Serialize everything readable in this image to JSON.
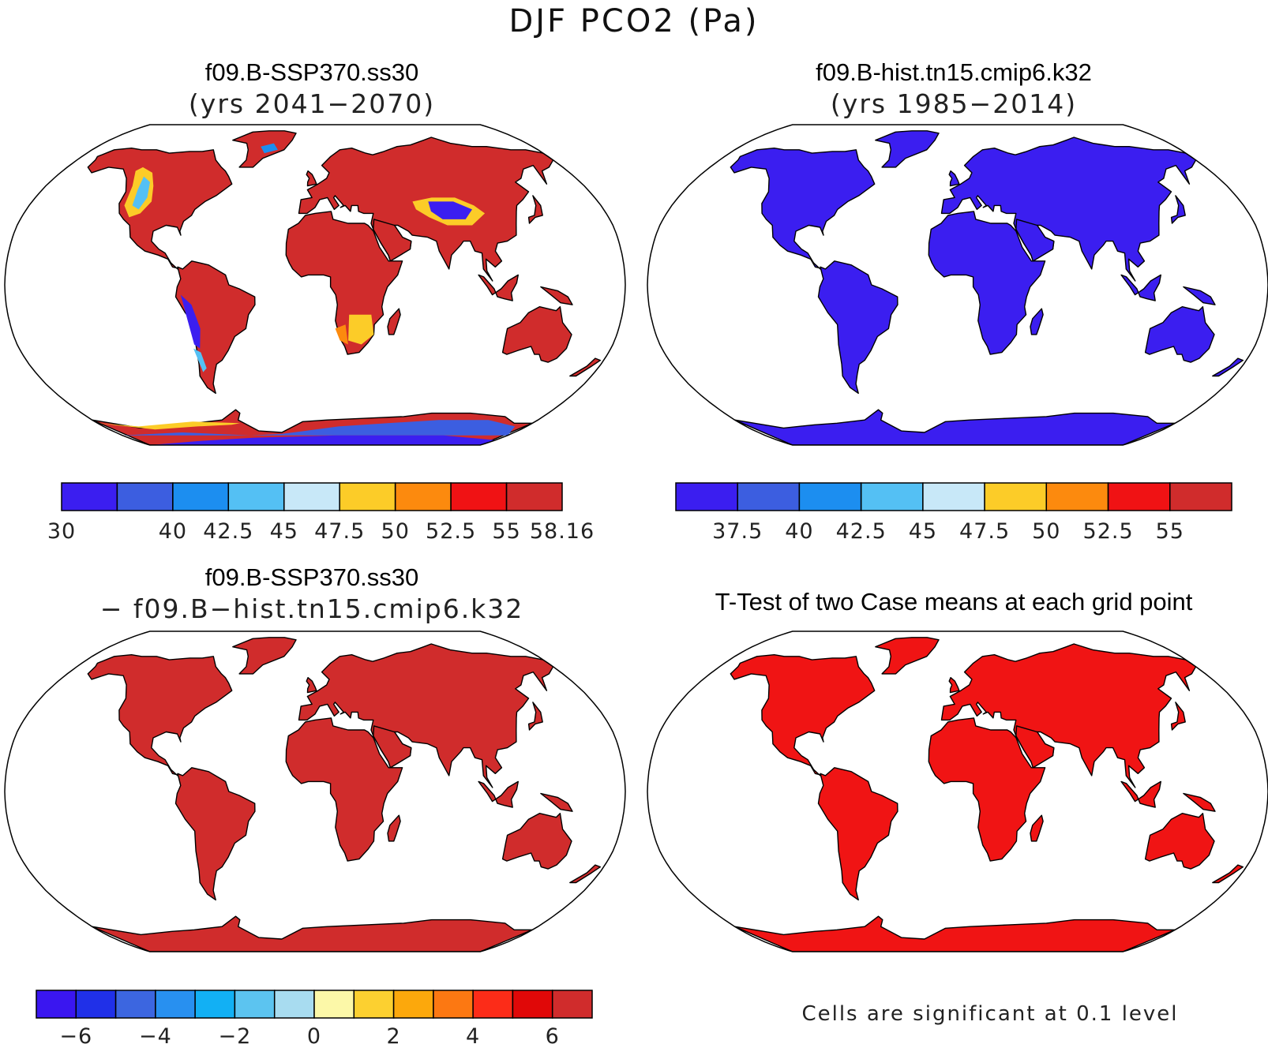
{
  "figure": {
    "title": "DJF PCO2 (Pa)"
  },
  "panels": [
    {
      "id": "top-left",
      "case": "f09.B-SSP370.ss30",
      "subtitle": "(yrs 2041−2070)",
      "field": "case1",
      "colorbar": {
        "colors": [
          "#3b1ef0",
          "#3c5ee0",
          "#1c8ef0",
          "#54c0f4",
          "#c8e8f8",
          "#fccc28",
          "#fc8a0e",
          "#f01214",
          "#d02c2c"
        ],
        "labels": [
          {
            "text": "30",
            "edge": 0
          },
          {
            "text": "40",
            "edge": 2
          },
          {
            "text": "42.5",
            "edge": 3
          },
          {
            "text": "45",
            "edge": 4
          },
          {
            "text": "47.5",
            "edge": 5
          },
          {
            "text": "50",
            "edge": 6
          },
          {
            "text": "52.5",
            "edge": 7
          },
          {
            "text": "55",
            "edge": 8
          },
          {
            "text": "58.16",
            "edge": 9
          }
        ]
      }
    },
    {
      "id": "top-right",
      "case": "f09.B-hist.tn15.cmip6.k32",
      "subtitle": "(yrs 1985−2014)",
      "field": "case2",
      "colorbar": {
        "colors": [
          "#3b1ef0",
          "#3c5ee0",
          "#1c8ef0",
          "#54c0f4",
          "#c8e8f8",
          "#fccc28",
          "#fc8a0e",
          "#f01214",
          "#d02c2c"
        ],
        "labels": [
          {
            "text": "37.5",
            "edge": 1
          },
          {
            "text": "40",
            "edge": 2
          },
          {
            "text": "42.5",
            "edge": 3
          },
          {
            "text": "45",
            "edge": 4
          },
          {
            "text": "47.5",
            "edge": 5
          },
          {
            "text": "50",
            "edge": 6
          },
          {
            "text": "52.5",
            "edge": 7
          },
          {
            "text": "55",
            "edge": 8
          }
        ]
      }
    },
    {
      "id": "bottom-left",
      "case": "f09.B-SSP370.ss30",
      "subtitle": "− f09.B−hist.tn15.cmip6.k32",
      "field": "diff",
      "colorbar": {
        "colors": [
          "#3a16f0",
          "#2030e8",
          "#3c66e0",
          "#2890f0",
          "#12b0f4",
          "#5cc4f0",
          "#a8dcf0",
          "#fcf8a8",
          "#fcd030",
          "#fca80c",
          "#fc7812",
          "#fc2c18",
          "#e00808",
          "#d02c2c"
        ],
        "labels": [
          {
            "text": "−6",
            "edge": 1
          },
          {
            "text": "−4",
            "edge": 3
          },
          {
            "text": "−2",
            "edge": 5
          },
          {
            "text": "0",
            "edge": 7
          },
          {
            "text": "2",
            "edge": 9
          },
          {
            "text": "4",
            "edge": 11
          },
          {
            "text": "6",
            "edge": 13
          }
        ]
      }
    },
    {
      "id": "bottom-right",
      "title": "T-Test of two Case means at each grid point",
      "field": "ttest",
      "note": "Cells are significant at 0.1 level"
    }
  ],
  "colors": {
    "land_case1": "#d02c2c",
    "land_case2": "#3b1ef0",
    "land_diff": "#d02c2c",
    "land_ttest": "#f01414",
    "ocean": "#ffffff",
    "outline": "#000000"
  }
}
